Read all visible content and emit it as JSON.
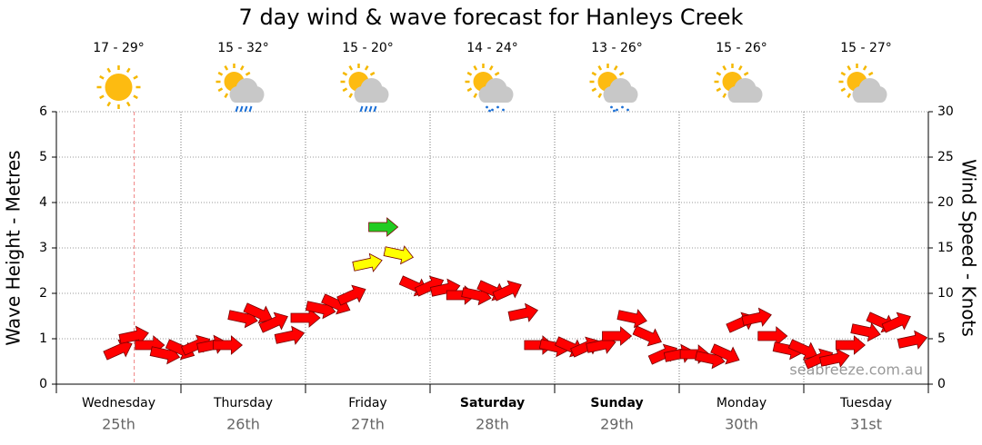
{
  "chart_data": {
    "type": "wind-arrows",
    "title": "7 day wind & wave forecast for Hanleys Creek",
    "y_label": "Wave Height - Metres",
    "y2_label": "Wind Speed - Knots",
    "watermark": "seabreeze.com.au",
    "days": [
      "Wednesday",
      "Thursday",
      "Friday",
      "Saturday",
      "Sunday",
      "Monday",
      "Tuesday"
    ],
    "dates": [
      "25th",
      "26th",
      "27th",
      "28th",
      "29th",
      "30th",
      "31st"
    ],
    "bold": [
      false,
      false,
      false,
      true,
      true,
      false,
      false
    ],
    "weather": [
      {
        "temp": "17 - 29°",
        "icon": "sun"
      },
      {
        "temp": "15 - 32°",
        "icon": "rain"
      },
      {
        "temp": "15 - 20°",
        "icon": "rain"
      },
      {
        "temp": "14 - 24°",
        "icon": "drizzle"
      },
      {
        "temp": "13 - 26°",
        "icon": "drizzle"
      },
      {
        "temp": "15 - 26°",
        "icon": "cloud"
      },
      {
        "temp": "15 - 27°",
        "icon": "cloud"
      }
    ],
    "xlim": [
      0,
      168
    ],
    "xticks": [
      0,
      24,
      48,
      72,
      96,
      120,
      144,
      168
    ],
    "now": 15,
    "ylim": [
      0,
      6
    ],
    "yticks": [
      0,
      1,
      2,
      3,
      4,
      5,
      6
    ],
    "y2lim": [
      0,
      30
    ],
    "y2ticks": [
      0,
      5,
      10,
      15,
      20,
      25,
      30
    ],
    "grid": true,
    "series": [
      {
        "name": "Wind Speed",
        "axis": "y2",
        "x": [
          12,
          15,
          18,
          21,
          24,
          27,
          30,
          33,
          36,
          39,
          42,
          45,
          48,
          51,
          54,
          57,
          60,
          63,
          66,
          69,
          72,
          75,
          78,
          81,
          84,
          87,
          90,
          93,
          96,
          99,
          102,
          105,
          108,
          111,
          114,
          117,
          120,
          123,
          126,
          129,
          132,
          135,
          138,
          141,
          144,
          147,
          150,
          153,
          156,
          159,
          162,
          165
        ],
        "values": [
          3.8,
          5.3,
          4.3,
          3.3,
          3.8,
          4.3,
          4.3,
          4.3,
          7.3,
          7.8,
          6.8,
          5.3,
          7.3,
          8.3,
          8.8,
          9.8,
          13.3,
          17.3,
          14.3,
          10.8,
          10.8,
          10.5,
          9.8,
          9.8,
          10.3,
          10.3,
          7.8,
          4.3,
          4.1,
          4.1,
          4.1,
          4.3,
          5.3,
          7.3,
          5.3,
          3.3,
          3.3,
          3.3,
          2.8,
          3.3,
          6.8,
          7.3,
          5.3,
          3.8,
          3.8,
          2.8,
          2.8,
          4.3,
          5.8,
          6.8,
          6.8,
          4.8
        ],
        "colors": [
          "#f00",
          "#f00",
          "#f00",
          "#f00",
          "#f00",
          "#f00",
          "#f00",
          "#f00",
          "#f00",
          "#f00",
          "#f00",
          "#f00",
          "#f00",
          "#f00",
          "#f00",
          "#f00",
          "#ff0",
          "#2c2",
          "#ff0",
          "#f00",
          "#f00",
          "#f00",
          "#f00",
          "#f00",
          "#f00",
          "#f00",
          "#f00",
          "#f00",
          "#f00",
          "#f00",
          "#f00",
          "#f00",
          "#f00",
          "#f00",
          "#f00",
          "#f00",
          "#f00",
          "#f00",
          "#f00",
          "#f00",
          "#f00",
          "#f00",
          "#f00",
          "#f00",
          "#f00",
          "#f00",
          "#f00",
          "#f00",
          "#f00",
          "#f00",
          "#f00",
          "#f00"
        ]
      }
    ]
  }
}
